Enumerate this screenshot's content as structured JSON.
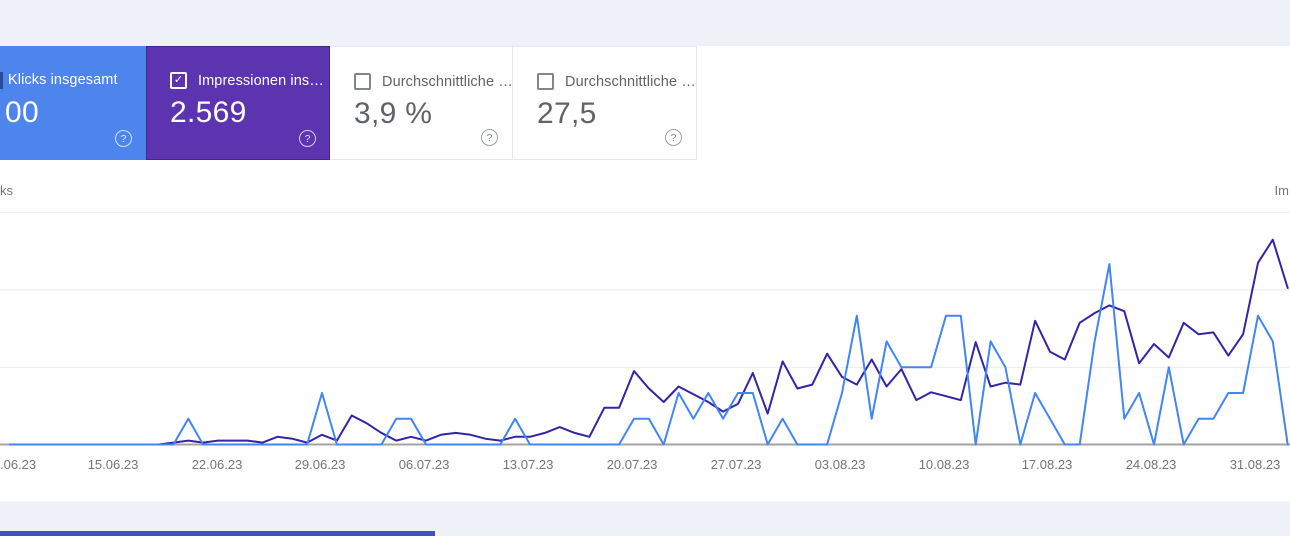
{
  "colors": {
    "klicks_card": "#4d85ec",
    "impressionen_card": "#5d34af",
    "klicks_line": "#4285f4",
    "impressionen_line": "#3424a8",
    "page_bg": "#eef1f8",
    "footer_bar": "#3f51c4",
    "baseline": "#a3a3a3",
    "gridline": "#e9e9e9"
  },
  "cards": [
    {
      "label": "Klicks insgesamt",
      "value": "00",
      "help_icon": "?",
      "selected": true
    },
    {
      "label": "Impressionen ins…",
      "value": "2.569",
      "help_icon": "?",
      "selected": true,
      "check_glyph": "✓"
    },
    {
      "label": "Durchschnittliche …",
      "value": "3,9 %",
      "help_icon": "?",
      "selected": false
    },
    {
      "label": "Durchschnittliche …",
      "value": "27,5",
      "help_icon": "?",
      "selected": false
    }
  ],
  "chart": {
    "left_axis_label": "ks",
    "right_axis_label": "Im"
  },
  "chart_data": {
    "type": "line",
    "x_tick_labels": [
      ".06.23",
      "15.06.23",
      "22.06.23",
      "29.06.23",
      "06.07.23",
      "13.07.23",
      "20.07.23",
      "27.07.23",
      "03.08.23",
      "10.08.23",
      "17.08.23",
      "24.08.23",
      "31.08.23"
    ],
    "grid": true,
    "legend_position": "none",
    "left_ylim": [
      0,
      11
    ],
    "right_ylim": [
      0,
      147
    ],
    "series": [
      {
        "name": "Klicks",
        "axis": "left",
        "color": "#4285f4",
        "values": [
          0,
          0,
          0,
          0,
          0,
          0,
          0,
          0,
          0,
          0,
          0,
          0,
          1,
          0,
          0,
          0,
          0,
          0,
          0,
          0,
          0,
          2,
          0,
          0,
          0,
          0,
          1,
          1,
          0,
          0,
          0,
          0,
          0,
          0,
          1,
          0,
          0,
          0,
          0,
          0,
          0,
          0,
          1,
          1,
          0,
          2,
          1,
          2,
          1,
          2,
          2,
          0,
          1,
          0,
          0,
          0,
          2,
          5,
          1,
          4,
          3,
          3,
          3,
          5,
          5,
          0,
          4,
          3,
          0,
          2,
          1,
          0,
          0,
          4,
          7,
          1,
          2,
          0,
          3,
          0,
          1,
          1,
          2,
          2,
          5,
          4,
          0
        ]
      },
      {
        "name": "Impressionen",
        "axis": "right",
        "color": "#3424a8",
        "values": [
          0,
          0,
          0,
          0,
          0,
          0,
          0,
          0,
          0,
          0,
          0,
          1,
          2,
          1,
          2,
          2,
          2,
          1,
          4,
          3,
          1,
          5,
          2,
          15,
          11,
          6,
          2,
          4,
          2,
          5,
          6,
          5,
          3,
          2,
          4,
          4,
          6,
          9,
          6,
          4,
          19,
          19,
          38,
          29,
          22,
          30,
          26,
          22,
          17,
          21,
          37,
          16,
          43,
          29,
          31,
          47,
          35,
          31,
          44,
          30,
          39,
          23,
          27,
          25,
          23,
          53,
          30,
          32,
          31,
          64,
          48,
          44,
          63,
          68,
          72,
          69,
          42,
          52,
          45,
          63,
          57,
          58,
          46,
          57,
          94,
          106,
          81
        ]
      }
    ]
  }
}
